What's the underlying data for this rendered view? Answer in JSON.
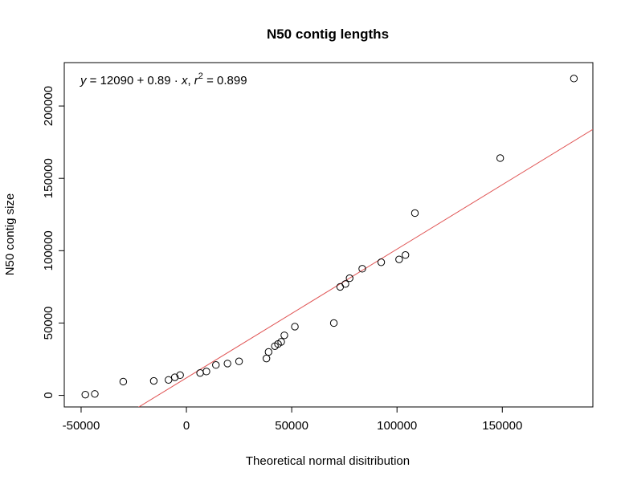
{
  "chart_data": {
    "type": "scatter",
    "title": "N50 contig lengths",
    "xlabel": "Theoretical normal disitribution",
    "ylabel": "N50 contig size",
    "xlim": [
      -58000,
      193000
    ],
    "ylim": [
      -8000,
      230000
    ],
    "x_ticks": [
      -50000,
      0,
      50000,
      100000,
      150000
    ],
    "x_tick_labels": [
      "-50000",
      "0",
      "50000",
      "100000",
      "150000"
    ],
    "y_ticks": [
      0,
      50000,
      100000,
      150000,
      200000
    ],
    "y_tick_labels": [
      "0",
      "50000",
      "100000",
      "150000",
      "200000"
    ],
    "grid": false,
    "point_style": "open-circle",
    "point_color": "#000000",
    "fit_line": {
      "intercept": 12090,
      "slope": 0.89,
      "color": "#e05555"
    },
    "equation": {
      "y_var": "y",
      "rhs": " = 12090 + 0.89 · ",
      "x_var": "x",
      "sep": ",  ",
      "r_var": "r",
      "r_exp": "2",
      "r_value": " = 0.899"
    },
    "points": [
      {
        "x": -48000,
        "y": 500
      },
      {
        "x": -43500,
        "y": 1000
      },
      {
        "x": -30000,
        "y": 9500
      },
      {
        "x": -15500,
        "y": 10000
      },
      {
        "x": -8500,
        "y": 10700
      },
      {
        "x": -5500,
        "y": 12500
      },
      {
        "x": -3000,
        "y": 14000
      },
      {
        "x": 6500,
        "y": 15500
      },
      {
        "x": 9500,
        "y": 16500
      },
      {
        "x": 14000,
        "y": 21000
      },
      {
        "x": 19500,
        "y": 22000
      },
      {
        "x": 25000,
        "y": 23500
      },
      {
        "x": 38000,
        "y": 25500
      },
      {
        "x": 39000,
        "y": 30000
      },
      {
        "x": 42000,
        "y": 34000
      },
      {
        "x": 43500,
        "y": 35500
      },
      {
        "x": 45000,
        "y": 37000
      },
      {
        "x": 46500,
        "y": 41500
      },
      {
        "x": 51500,
        "y": 47500
      },
      {
        "x": 70000,
        "y": 50000
      },
      {
        "x": 73000,
        "y": 75000
      },
      {
        "x": 75500,
        "y": 77000
      },
      {
        "x": 77500,
        "y": 81000
      },
      {
        "x": 83500,
        "y": 87500
      },
      {
        "x": 92500,
        "y": 92000
      },
      {
        "x": 101000,
        "y": 94000
      },
      {
        "x": 104000,
        "y": 97000
      },
      {
        "x": 108500,
        "y": 126000
      },
      {
        "x": 149000,
        "y": 164000
      },
      {
        "x": 184000,
        "y": 219000
      }
    ]
  }
}
